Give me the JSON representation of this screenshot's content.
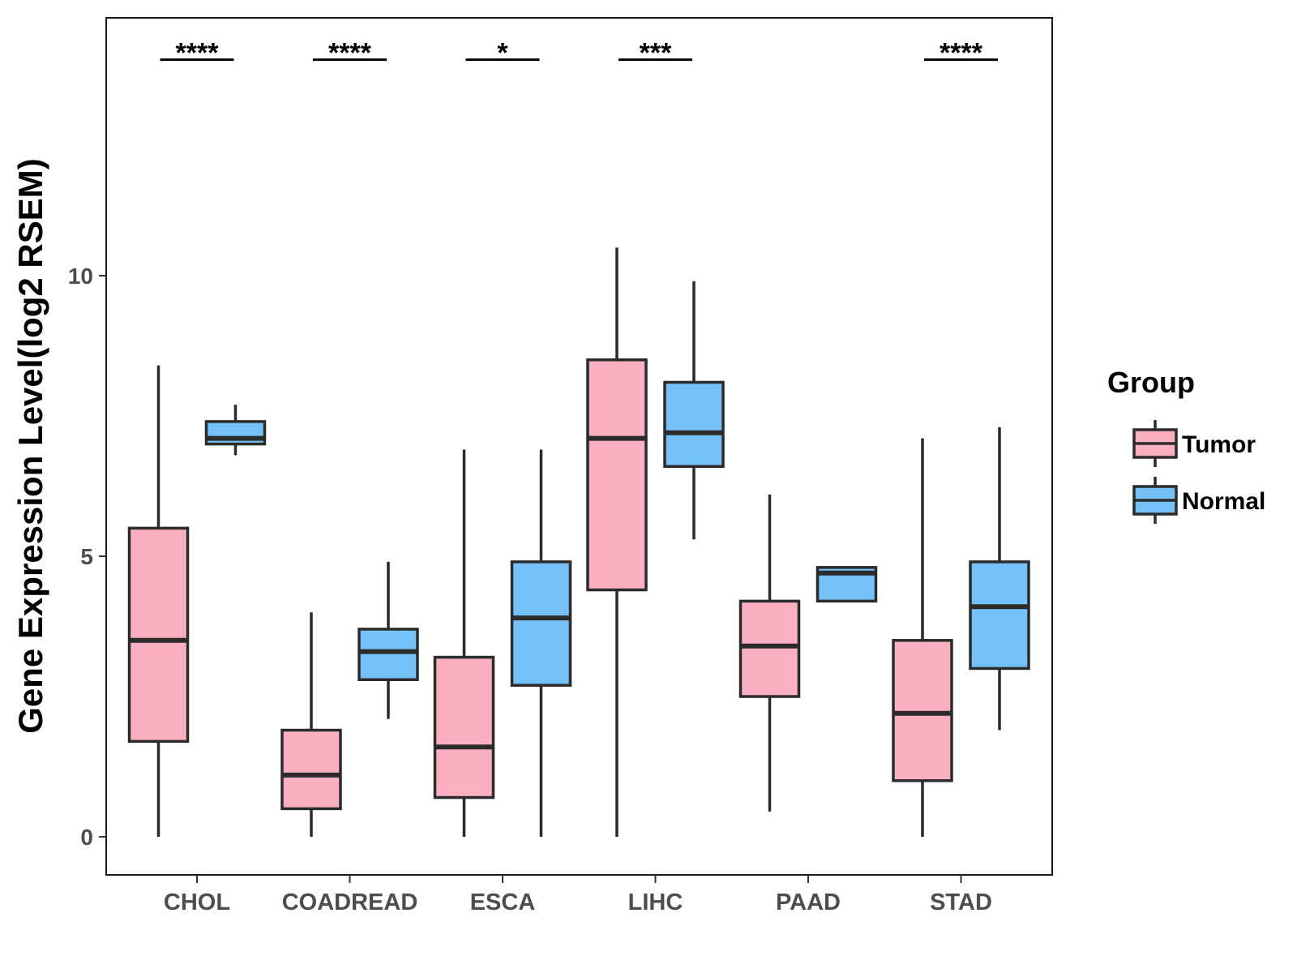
{
  "chart_data": {
    "type": "boxplot",
    "title": "",
    "xlabel": "",
    "ylabel": "Gene Expression Level(log2 RSEM)",
    "ylim": [
      -0.7,
      14.55
    ],
    "yticks": [
      0,
      5,
      10
    ],
    "grid": false,
    "legend": {
      "title": "Group",
      "placement": "right",
      "entries": [
        {
          "name": "Tumor",
          "color": "#FBB0C2"
        },
        {
          "name": "Normal",
          "color": "#76C1F7"
        }
      ]
    },
    "categories": [
      "CHOL",
      "COADREAD",
      "ESCA",
      "LIHC",
      "PAAD",
      "STAD"
    ],
    "significance": [
      "****",
      "****",
      "*",
      "***",
      "",
      "****"
    ],
    "significance_y": 13.85,
    "series": [
      {
        "name": "Tumor",
        "color": "#FBB0C2",
        "boxes": [
          {
            "min": 0.0,
            "q1": 1.7,
            "median": 3.5,
            "q3": 5.5,
            "max": 8.4
          },
          {
            "min": 0.0,
            "q1": 0.5,
            "median": 1.1,
            "q3": 1.9,
            "max": 4.0
          },
          {
            "min": 0.0,
            "q1": 0.7,
            "median": 1.6,
            "q3": 3.2,
            "max": 6.9
          },
          {
            "min": 0.0,
            "q1": 4.4,
            "median": 7.1,
            "q3": 8.5,
            "max": 10.5
          },
          {
            "min": 0.45,
            "q1": 2.5,
            "median": 3.4,
            "q3": 4.2,
            "max": 6.1
          },
          {
            "min": 0.0,
            "q1": 1.0,
            "median": 2.2,
            "q3": 3.5,
            "max": 7.1
          }
        ]
      },
      {
        "name": "Normal",
        "color": "#76C1F7",
        "boxes": [
          {
            "min": 6.8,
            "q1": 7.0,
            "median": 7.1,
            "q3": 7.4,
            "max": 7.7
          },
          {
            "min": 2.1,
            "q1": 2.8,
            "median": 3.3,
            "q3": 3.7,
            "max": 4.9
          },
          {
            "min": 0.0,
            "q1": 2.7,
            "median": 3.9,
            "q3": 4.9,
            "max": 6.9
          },
          {
            "min": 5.3,
            "q1": 6.6,
            "median": 7.2,
            "q3": 8.1,
            "max": 9.9
          },
          {
            "min": 4.2,
            "q1": 4.2,
            "median": 4.7,
            "q3": 4.8,
            "max": 4.8
          },
          {
            "min": 1.9,
            "q1": 3.0,
            "median": 4.1,
            "q3": 4.9,
            "max": 7.3
          }
        ]
      }
    ]
  }
}
